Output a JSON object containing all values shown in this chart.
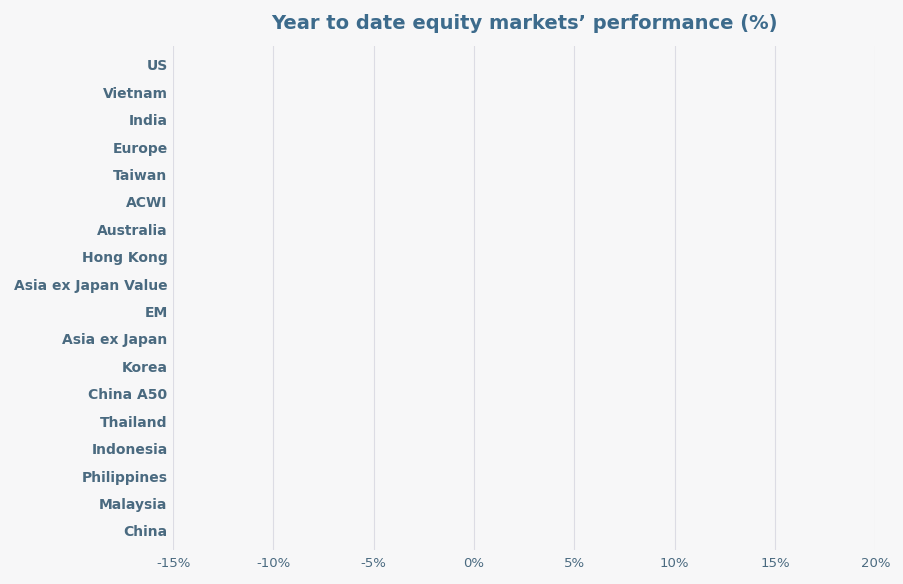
{
  "title": "Year to date equity markets’ performance (%)",
  "categories": [
    "US",
    "Vietnam",
    "India",
    "Europe",
    "Taiwan",
    "ACWI",
    "Australia",
    "Hong Kong",
    "Asia ex Japan Value",
    "EM",
    "Asia ex Japan",
    "Korea",
    "China A50",
    "Thailand",
    "Indonesia",
    "Philippines",
    "Malaysia",
    "China"
  ],
  "values": [
    0.0,
    0.0,
    0.0,
    0.0,
    0.0,
    0.0,
    0.0,
    0.0,
    0.0,
    0.0,
    0.0,
    0.0,
    0.0,
    0.0,
    0.0,
    0.0,
    0.0,
    0.0
  ],
  "bar_color": "#e8e8ed",
  "background_color": "#f7f7f8",
  "text_color": "#4a6a80",
  "title_color": "#3d6b8c",
  "grid_color": "#dcdce4",
  "xlim": [
    -15,
    20
  ],
  "xticks": [
    -15,
    -10,
    -5,
    0,
    5,
    10,
    15,
    20
  ],
  "xtick_labels": [
    "-15%",
    "-10%",
    "-5%",
    "0%",
    "5%",
    "10%",
    "15%",
    "20%"
  ],
  "title_fontsize": 14,
  "label_fontsize": 10,
  "tick_fontsize": 9.5
}
